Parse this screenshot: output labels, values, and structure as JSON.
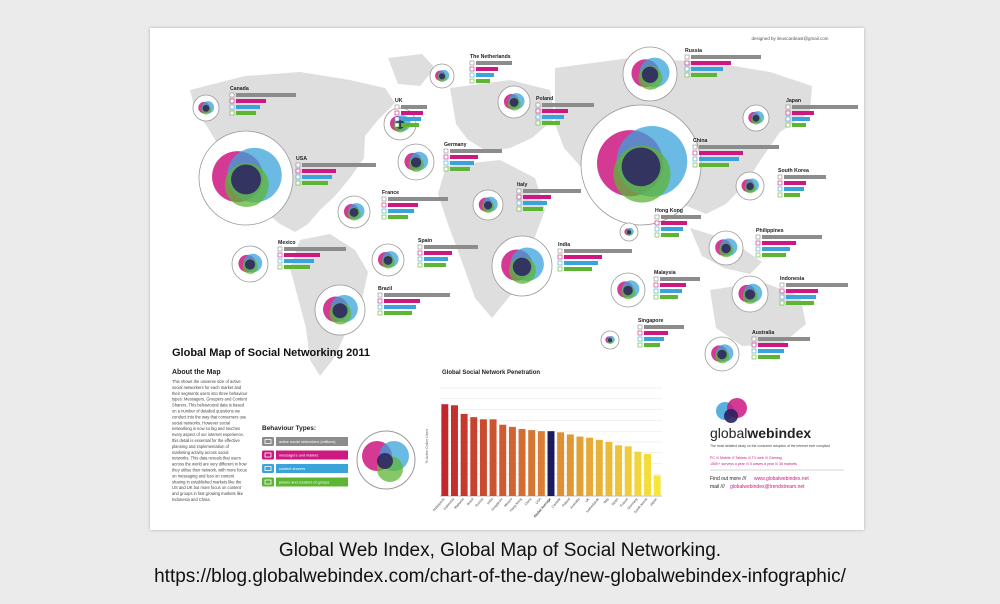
{
  "poster": {
    "credit": "designed by ileuscardeast@gmail.com",
    "title": "Global Map of Social Networking 2011",
    "about_heading": "About the Map",
    "about_text": [
      "This shows the universe size of active",
      "social networkers for each market and",
      "their segments users into three behaviour",
      "types: Messagers, Groupers and Content",
      "Sharers. This behavioural data is based",
      "on a number of detailed questions we",
      "conduct into the way that consumers use",
      "social networks. However social",
      "networking is now so big and touches",
      "every aspect of our internet experience,",
      "this detail is essential for the effective",
      "planning and implementation of",
      "marketing activity across social",
      "networks. This data reveals that users",
      "across the world are very different in how",
      "they utilise their network, with more focus",
      "on messaging and less on content",
      "sharing in established markets like the",
      "US and UK but more focus on content",
      "and groups in fast growing markets like",
      "Indonesia and China."
    ],
    "behaviour_heading": "Behaviour Types:",
    "behaviour_types": [
      {
        "label": "active social networkers (millions)",
        "color": "#8c8c8c",
        "icon": "person-icon"
      },
      {
        "label": "messagers and mailers",
        "color": "#cc1880",
        "icon": "message-icon"
      },
      {
        "label": "content sharers",
        "color": "#3aa3d9",
        "icon": "share-icon"
      },
      {
        "label": "joiners and creators of groups",
        "color": "#5db534",
        "icon": "group-icon"
      }
    ],
    "brand": {
      "name_part1": "global",
      "name_part2": "webindex",
      "tagline": "The most detailed study on the consumer adoption of the internet ever compiled",
      "stats_line1": "PC /// Mobile /// Tablets /// TV web /// Gaming",
      "stats_line2": "150K+ surveys a year /// 5 waves a year /// 36 markets",
      "find_out_more": "Find out more ///",
      "website": "www.globalwebindex.net",
      "mail_label": "mail ///",
      "email": "globalwebindex@trendstream.net"
    },
    "countries": [
      {
        "name": "Canada"
      },
      {
        "name": "UK"
      },
      {
        "name": "The Netherlands"
      },
      {
        "name": "Russia"
      },
      {
        "name": "Poland"
      },
      {
        "name": "Japan"
      },
      {
        "name": "USA"
      },
      {
        "name": "Germany"
      },
      {
        "name": "China"
      },
      {
        "name": "South Korea"
      },
      {
        "name": "France"
      },
      {
        "name": "Italy"
      },
      {
        "name": "Hong Kong"
      },
      {
        "name": "Philippines"
      },
      {
        "name": "Mexico"
      },
      {
        "name": "Spain"
      },
      {
        "name": "India"
      },
      {
        "name": "Malaysia"
      },
      {
        "name": "Indonesia"
      },
      {
        "name": "Brazil"
      },
      {
        "name": "Singapore"
      },
      {
        "name": "Australia"
      }
    ]
  },
  "chart_data": {
    "type": "bar",
    "title": "Global Social Network Penetration",
    "ylabel": "% Active Online Users",
    "categories": [
      "Philippines",
      "Indonesia",
      "Malaysia",
      "Brazil",
      "Russia",
      "India",
      "Singapore",
      "Mexico",
      "Hong Kong",
      "China",
      "USA",
      "Global Average",
      "Canada",
      "Poland",
      "Australia",
      "UK",
      "Netherlands",
      "Italy",
      "Spain",
      "France",
      "Germany",
      "South Korea",
      "Japan"
    ],
    "values": [
      0.85,
      0.84,
      0.76,
      0.73,
      0.71,
      0.71,
      0.66,
      0.64,
      0.62,
      0.61,
      0.6,
      0.6,
      0.59,
      0.57,
      0.55,
      0.54,
      0.52,
      0.5,
      0.47,
      0.46,
      0.41,
      0.39,
      0.19
    ],
    "ylim": [
      0,
      1
    ],
    "highlight": "Global Average",
    "highlight_color": "#1a1a5e",
    "color_gradient": [
      "#c0282d",
      "#f6e63c"
    ],
    "grid": true
  },
  "caption": {
    "line1": "Global Web Index, Global Map of Social Networking.",
    "line2": "https://blog.globalwebindex.com/chart-of-the-day/new-globalwebindex-infographic/"
  },
  "colors": {
    "messagers": "#cc1880",
    "sharers": "#3aa3d9",
    "groupers": "#5db534",
    "core": "#2b2060",
    "active": "#8c8c8c",
    "map": "#dcdcdc"
  }
}
